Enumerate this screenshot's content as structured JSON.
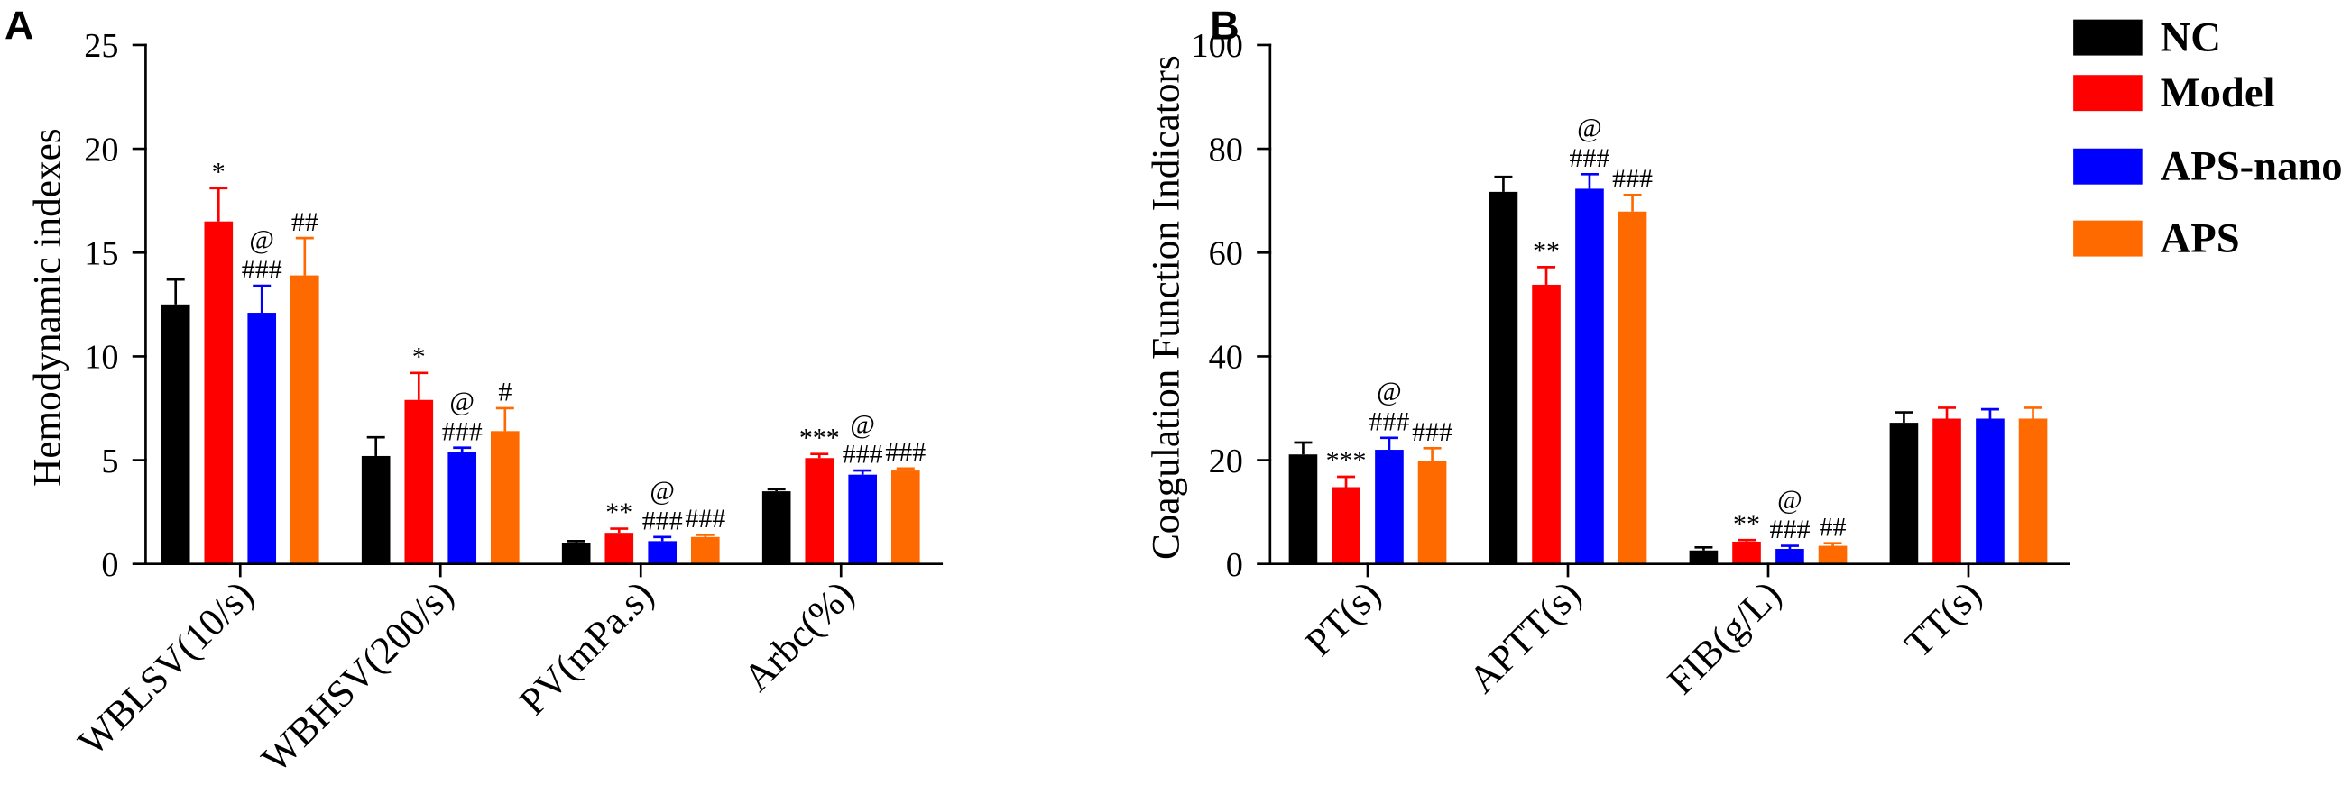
{
  "chart_data": {
    "type": "bar",
    "legend": "right",
    "grid": false,
    "series": [
      {
        "name": "NC",
        "color": "#000000"
      },
      {
        "name": "Model",
        "color": "#FF0000"
      },
      {
        "name": "APS-nano",
        "color": "#0000FF"
      },
      {
        "name": "APS",
        "color": "#FF6A00"
      }
    ],
    "panels": [
      {
        "label": "A",
        "ylabel": "Hemodynamic indexes",
        "ylim": [
          0,
          25
        ],
        "yticks": [
          0,
          5,
          10,
          15,
          20,
          25
        ],
        "categories": [
          "WBLSV(10/s)",
          "WBHSV(200/s)",
          "PV(mPa.s)",
          "Arbc(%)"
        ],
        "values": [
          [
            12.5,
            5.2,
            1.0,
            3.5
          ],
          [
            16.5,
            7.9,
            1.5,
            5.1
          ],
          [
            12.1,
            5.4,
            1.1,
            4.3
          ],
          [
            13.9,
            6.4,
            1.3,
            4.5
          ]
        ],
        "error_upper": [
          [
            13.7,
            6.1,
            1.1,
            3.6
          ],
          [
            18.1,
            9.2,
            1.7,
            5.3
          ],
          [
            13.4,
            5.6,
            1.3,
            4.5
          ],
          [
            15.7,
            7.5,
            1.4,
            4.6
          ]
        ],
        "annotations": [
          [
            [],
            [],
            [],
            []
          ],
          [
            [
              "*"
            ],
            [
              "*"
            ],
            [
              "**"
            ],
            [
              "***"
            ]
          ],
          [
            [
              "###",
              "@"
            ],
            [
              "###",
              "@"
            ],
            [
              "###",
              "@"
            ],
            [
              "###",
              "@"
            ]
          ],
          [
            [
              "##"
            ],
            [
              "#"
            ],
            [
              "###"
            ],
            [
              "###"
            ]
          ]
        ]
      },
      {
        "label": "B",
        "ylabel": "Coagulation Function Indicators",
        "ylim": [
          0,
          100
        ],
        "yticks": [
          0,
          20,
          40,
          60,
          80,
          100
        ],
        "categories": [
          "PT(s)",
          "APTT(s)",
          "FIB(g/L)",
          "TT(s)"
        ],
        "values": [
          [
            21.1,
            71.7,
            2.6,
            27.2
          ],
          [
            14.8,
            53.8,
            4.3,
            28.0
          ],
          [
            22.0,
            72.3,
            2.9,
            28.0
          ],
          [
            19.9,
            67.9,
            3.5,
            28.0
          ]
        ],
        "error_upper": [
          [
            23.4,
            74.6,
            3.2,
            29.2
          ],
          [
            16.8,
            57.2,
            4.6,
            30.1
          ],
          [
            24.3,
            75.1,
            3.5,
            29.8
          ],
          [
            22.3,
            71.1,
            4.0,
            30.1
          ]
        ],
        "annotations": [
          [
            [],
            [],
            [],
            []
          ],
          [
            [
              "***"
            ],
            [
              "**"
            ],
            [
              "**"
            ],
            []
          ],
          [
            [
              "###",
              "@"
            ],
            [
              "###",
              "@"
            ],
            [
              "###",
              "@"
            ],
            []
          ],
          [
            [
              "###"
            ],
            [
              "###"
            ],
            [
              "##"
            ],
            []
          ]
        ]
      }
    ]
  }
}
